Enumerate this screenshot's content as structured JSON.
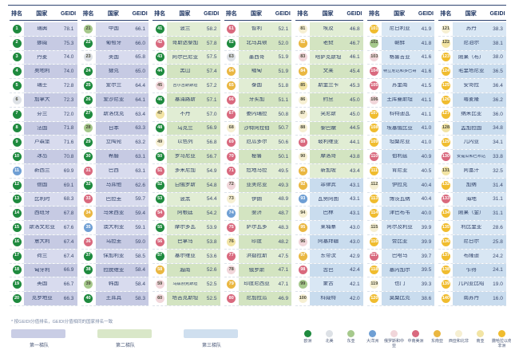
{
  "footnote": "* 按GEIDI分值排名，GEIDI分值相同的国家排名一致",
  "tier_legend": [
    {
      "label": "第一梯队",
      "color": "#c9cde5"
    },
    {
      "label": "第二梯队",
      "color": "#d9e7c8"
    },
    {
      "label": "第三梯队",
      "color": "#cfdfef"
    }
  ],
  "tier_breaks": {
    "tier1_max_rank": 40,
    "tier2_max_rank": 91
  },
  "tier_row_shades": [
    [
      "#d8dbee",
      "#c6cae3"
    ],
    [
      "#e1edd4",
      "#d3e4c1"
    ],
    [
      "#d9e7f4",
      "#c9dcee"
    ]
  ],
  "region_legend": [
    {
      "key": "eu",
      "label": "欧洲",
      "color": "#1e8a3e",
      "dark_badge": true
    },
    {
      "key": "na",
      "label": "北美",
      "color": "#dde1e6",
      "dark_badge": false
    },
    {
      "key": "ea",
      "label": "东亚",
      "color": "#a6c98c",
      "dark_badge": false
    },
    {
      "key": "oc",
      "label": "大洋洲",
      "color": "#6f9fd4",
      "dark_badge": true
    },
    {
      "key": "ru",
      "label": "俄罗斯和中亚",
      "color": "#f1d6da",
      "dark_badge": false
    },
    {
      "key": "la",
      "label": "中南美洲",
      "color": "#d9697e",
      "dark_badge": true
    },
    {
      "key": "sea",
      "label": "东南亚",
      "color": "#eab741",
      "dark_badge": true
    },
    {
      "key": "wana",
      "label": "西亚和北非",
      "color": "#f6efd2",
      "dark_badge": false
    },
    {
      "key": "sa",
      "label": "南亚",
      "color": "#f2e4a4",
      "dark_badge": false
    },
    {
      "key": "ssa",
      "label": "撒哈拉以南非洲",
      "color": "#f0bc2e",
      "dark_badge": true
    }
  ],
  "chart_data": {
    "type": "table",
    "headers": {
      "rank": "排名",
      "country": "国家",
      "score": "GEIDI"
    },
    "row_format": [
      "rank",
      "country",
      "geidi",
      "region_key"
    ],
    "groups": [
      [
        [
          1,
          "瑞典",
          "78.1",
          "eu"
        ],
        [
          2,
          "挪威",
          "75.3",
          "eu"
        ],
        [
          3,
          "丹麦",
          "74.0",
          "eu"
        ],
        [
          4,
          "奥地利",
          "74.0",
          "eu"
        ],
        [
          5,
          "瑞士",
          "72.8",
          "eu"
        ],
        [
          6,
          "加拿大",
          "72.3",
          "na"
        ],
        [
          7,
          "芬兰",
          "72.0",
          "eu"
        ],
        [
          8,
          "法国",
          "71.8",
          "eu"
        ],
        [
          9,
          "卢森堡",
          "71.6",
          "eu"
        ],
        [
          10,
          "冰岛",
          "70.8",
          "eu"
        ],
        [
          11,
          "新西兰",
          "69.9",
          "oc"
        ],
        [
          12,
          "德国",
          "69.1",
          "eu"
        ],
        [
          13,
          "比利时",
          "68.3",
          "eu"
        ],
        [
          14,
          "西班牙",
          "67.8",
          "eu"
        ],
        [
          15,
          "斯洛文尼亚",
          "67.6",
          "eu"
        ],
        [
          16,
          "意大利",
          "67.4",
          "eu"
        ],
        [
          17,
          "荷兰",
          "67.4",
          "eu"
        ],
        [
          18,
          "匈牙利",
          "66.9",
          "eu"
        ],
        [
          19,
          "英国",
          "66.7",
          "eu"
        ],
        [
          20,
          "克罗地亚",
          "66.3",
          "eu"
        ]
      ],
      [
        [
          21,
          "中国",
          "66.1",
          "ea"
        ],
        [
          22,
          "葡萄牙",
          "66.0",
          "eu"
        ],
        [
          23,
          "美国",
          "65.8",
          "na"
        ],
        [
          24,
          "捷克",
          "65.0",
          "eu"
        ],
        [
          25,
          "爱尔兰",
          "64.4",
          "eu"
        ],
        [
          26,
          "爱沙尼亚",
          "64.1",
          "eu"
        ],
        [
          27,
          "斯洛伐克",
          "63.4",
          "eu"
        ],
        [
          28,
          "日本",
          "63.3",
          "ea"
        ],
        [
          29,
          "立陶宛",
          "63.2",
          "eu"
        ],
        [
          30,
          "希腊",
          "63.1",
          "eu"
        ],
        [
          31,
          "巴西",
          "63.1",
          "la"
        ],
        [
          32,
          "马耳他",
          "62.6",
          "eu"
        ],
        [
          33,
          "巴拉圭",
          "59.7",
          "la"
        ],
        [
          34,
          "马来西亚",
          "59.4",
          "sea"
        ],
        [
          35,
          "澳大利亚",
          "59.1",
          "oc"
        ],
        [
          36,
          "乌拉圭",
          "59.0",
          "la"
        ],
        [
          37,
          "保加利亚",
          "58.5",
          "eu"
        ],
        [
          38,
          "拉脱维亚",
          "58.4",
          "eu"
        ],
        [
          39,
          "韩国",
          "58.4",
          "ea"
        ],
        [
          40,
          "土耳其",
          "58.3",
          "eu"
        ]
      ],
      [
        [
          41,
          "波兰",
          "58.2",
          "eu"
        ],
        [
          42,
          "哥斯达黎加",
          "57.8",
          "la"
        ],
        [
          43,
          "阿尔巴尼亚",
          "57.5",
          "eu"
        ],
        [
          44,
          "黑山",
          "57.4",
          "eu"
        ],
        [
          45,
          "吉尔吉斯斯坦",
          "57.2",
          "ru"
        ],
        [
          46,
          "塞浦路斯",
          "57.1",
          "eu"
        ],
        [
          47,
          "不丹",
          "57.0",
          "sa"
        ],
        [
          48,
          "乌克兰",
          "56.9",
          "eu"
        ],
        [
          49,
          "以色列",
          "56.8",
          "wana"
        ],
        [
          50,
          "罗马尼亚",
          "56.7",
          "eu"
        ],
        [
          51,
          "多米尼加",
          "54.9",
          "la"
        ],
        [
          52,
          "白俄罗斯",
          "54.8",
          "eu"
        ],
        [
          53,
          "波黑",
          "54.4",
          "eu"
        ],
        [
          54,
          "阿根廷",
          "54.2",
          "la"
        ],
        [
          55,
          "摩尔多瓦",
          "53.9",
          "eu"
        ],
        [
          56,
          "巴拿马",
          "53.8",
          "la"
        ],
        [
          57,
          "塞尔维亚",
          "53.6",
          "eu"
        ],
        [
          58,
          "越南",
          "52.6",
          "sea"
        ],
        [
          59,
          "乌兹别克斯坦",
          "52.5",
          "ru"
        ],
        [
          60,
          "塔吉克斯坦",
          "52.5",
          "ru"
        ]
      ],
      [
        [
          61,
          "智利",
          "52.1",
          "la"
        ],
        [
          62,
          "北马其顿",
          "52.0",
          "eu"
        ],
        [
          63,
          "墨西哥",
          "51.9",
          "na"
        ],
        [
          64,
          "缅甸",
          "51.9",
          "sea"
        ],
        [
          65,
          "泰国",
          "51.8",
          "sea"
        ],
        [
          66,
          "牙买加",
          "51.1",
          "la"
        ],
        [
          67,
          "委内瑞拉",
          "50.8",
          "la"
        ],
        [
          68,
          "沙特阿拉伯",
          "50.7",
          "wana"
        ],
        [
          69,
          "厄瓜多尔",
          "50.6",
          "la"
        ],
        [
          70,
          "秘鲁",
          "50.1",
          "la"
        ],
        [
          71,
          "危地马拉",
          "49.5",
          "la"
        ],
        [
          72,
          "亚美尼亚",
          "49.3",
          "ru"
        ],
        [
          73,
          "伊朗",
          "48.9",
          "wana"
        ],
        [
          74,
          "斐济",
          "48.7",
          "oc"
        ],
        [
          75,
          "萨尔瓦多",
          "48.3",
          "la"
        ],
        [
          76,
          "印度",
          "48.2",
          "sa"
        ],
        [
          77,
          "洪都拉斯",
          "47.5",
          "la"
        ],
        [
          78,
          "俄罗斯",
          "47.1",
          "ru"
        ],
        [
          79,
          "印度尼西亚",
          "47.1",
          "sea"
        ],
        [
          80,
          "尼加拉瓜",
          "46.9",
          "la"
        ]
      ],
      [
        [
          81,
          "埃及",
          "46.8",
          "wana"
        ],
        [
          82,
          "老挝",
          "46.7",
          "sea"
        ],
        [
          83,
          "哈萨克斯坦",
          "46.1",
          "ru"
        ],
        [
          84,
          "文莱",
          "45.4",
          "sea"
        ],
        [
          85,
          "斯里兰卡",
          "45.3",
          "sa"
        ],
        [
          86,
          "约旦",
          "45.0",
          "wana"
        ],
        [
          87,
          "突尼斯",
          "45.0",
          "wana"
        ],
        [
          88,
          "黎巴嫩",
          "44.5",
          "wana"
        ],
        [
          89,
          "玻利维亚",
          "44.1",
          "la"
        ],
        [
          90,
          "摩洛哥",
          "43.8",
          "wana"
        ],
        [
          91,
          "新加坡",
          "43.4",
          "sea"
        ],
        [
          92,
          "菲律宾",
          "43.1",
          "sea"
        ],
        [
          93,
          "瓦努阿图",
          "43.1",
          "oc"
        ],
        [
          94,
          "巴林",
          "43.1",
          "wana"
        ],
        [
          95,
          "柬埔寨",
          "43.0",
          "sea"
        ],
        [
          96,
          "阿塞拜疆",
          "43.0",
          "ru"
        ],
        [
          97,
          "东帝汶",
          "42.9",
          "sea"
        ],
        [
          98,
          "古巴",
          "42.4",
          "la"
        ],
        [
          99,
          "蒙古",
          "42.1",
          "ea"
        ],
        [
          100,
          "科威特",
          "42.0",
          "wana"
        ]
      ],
      [
        [
          101,
          "尼日利亚",
          "41.9",
          "ssa"
        ],
        [
          102,
          "朝鲜",
          "41.8",
          "ea"
        ],
        [
          103,
          "格鲁吉亚",
          "41.6",
          "ru"
        ],
        [
          104,
          "特立尼达和多巴哥",
          "41.6",
          "la"
        ],
        [
          105,
          "苏里南",
          "41.5",
          "la"
        ],
        [
          106,
          "土库曼斯坦",
          "41.1",
          "ru"
        ],
        [
          107,
          "科特迪瓦",
          "41.1",
          "ssa"
        ],
        [
          108,
          "埃塞俄比亚",
          "41.0",
          "ssa"
        ],
        [
          109,
          "坦桑尼亚",
          "41.0",
          "ssa"
        ],
        [
          110,
          "伯利兹",
          "40.9",
          "la"
        ],
        [
          111,
          "肯尼亚",
          "40.5",
          "ssa"
        ],
        [
          112,
          "伊拉克",
          "40.4",
          "wana"
        ],
        [
          113,
          "博茨瓦纳",
          "40.4",
          "ssa"
        ],
        [
          114,
          "津巴布韦",
          "40.0",
          "ssa"
        ],
        [
          115,
          "阿尔及利亚",
          "39.9",
          "wana"
        ],
        [
          116,
          "赞比亚",
          "39.9",
          "ssa"
        ],
        [
          117,
          "巴哈马",
          "39.7",
          "la"
        ],
        [
          118,
          "塞内加尔",
          "39.5",
          "ssa"
        ],
        [
          119,
          "也门",
          "39.3",
          "wana"
        ],
        [
          120,
          "莫桑比克",
          "38.6",
          "ssa"
        ]
      ],
      [
        [
          121,
          "苏丹",
          "38.3",
          "wana"
        ],
        [
          122,
          "尼泊尔",
          "38.1",
          "sa"
        ],
        [
          123,
          "刚果（布）",
          "38.0",
          "ssa"
        ],
        [
          124,
          "毛里塔尼亚",
          "36.5",
          "ssa"
        ],
        [
          125,
          "安哥拉",
          "36.4",
          "ssa"
        ],
        [
          126,
          "喀麦隆",
          "36.2",
          "ssa"
        ],
        [
          127,
          "纳米比亚",
          "36.0",
          "ssa"
        ],
        [
          128,
          "孟加拉国",
          "34.8",
          "sa"
        ],
        [
          129,
          "几内亚",
          "34.1",
          "ssa"
        ],
        [
          130,
          "安提瓜和巴布达",
          "33.8",
          "la"
        ],
        [
          131,
          "阿富汗",
          "32.5",
          "sa"
        ],
        [
          132,
          "加纳",
          "31.4",
          "ssa"
        ],
        [
          133,
          "海地",
          "31.1",
          "la"
        ],
        [
          134,
          "刚果（金）",
          "31.1",
          "ssa"
        ],
        [
          135,
          "利比里亚",
          "28.6",
          "ssa"
        ],
        [
          136,
          "尼日尔",
          "25.8",
          "ssa"
        ],
        [
          137,
          "布隆迪",
          "24.2",
          "ssa"
        ],
        [
          138,
          "乍得",
          "24.1",
          "ssa"
        ],
        [
          139,
          "几内亚比绍",
          "19.0",
          "ssa"
        ],
        [
          140,
          "南苏丹",
          "16.0",
          "ssa"
        ]
      ]
    ]
  }
}
